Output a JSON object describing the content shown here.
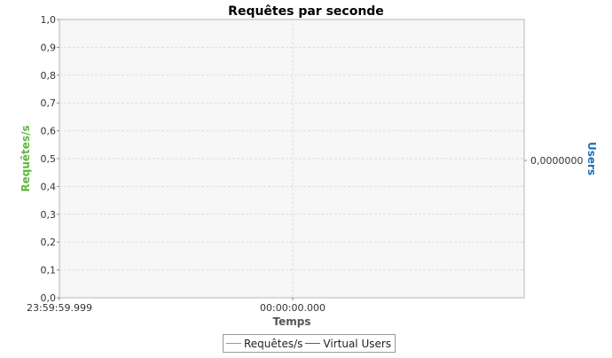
{
  "chart_data": {
    "type": "line",
    "title": "Requêtes par seconde",
    "xlabel": "Temps",
    "ylabel": "Requêtes/s",
    "y2label": "Users",
    "ylim": [
      0,
      1.0
    ],
    "yticks": [
      "0,0",
      "0,1",
      "0,2",
      "0,3",
      "0,4",
      "0,5",
      "0,6",
      "0,7",
      "0,8",
      "0,9",
      "1,0"
    ],
    "y2ticks": [
      "0,0000000"
    ],
    "xticks": [
      "23:59:59.999",
      "00:00:00.000"
    ],
    "grid": true,
    "legend_position": "bottom",
    "series": [
      {
        "name": "Requêtes/s",
        "color": "#6cc04a",
        "axis": "left",
        "values": []
      },
      {
        "name": "Virtual Users",
        "color": "#1f6fba",
        "axis": "right",
        "values": []
      }
    ],
    "colors": {
      "ylabel": "#5cb83c",
      "y2label": "#1f6fba",
      "plot_background": "#f7f7f7",
      "grid": "#dddddd"
    }
  }
}
